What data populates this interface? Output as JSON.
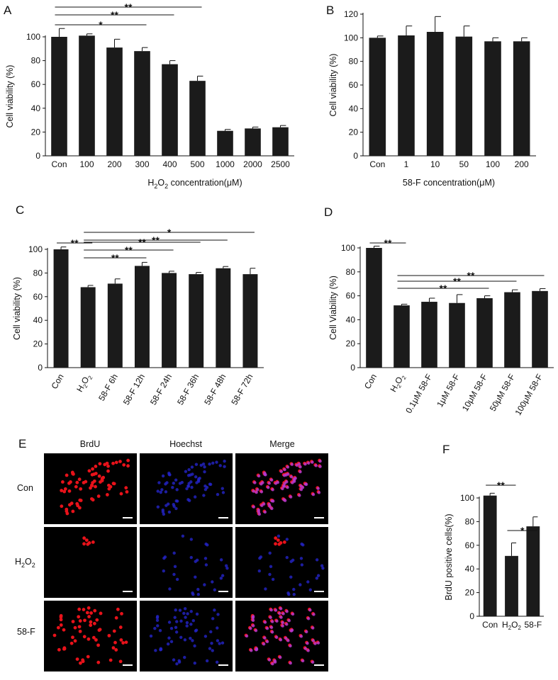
{
  "panels": {
    "A": {
      "letter": "A",
      "chart_data": {
        "type": "bar",
        "categories": [
          "Con",
          "100",
          "200",
          "300",
          "400",
          "500",
          "1000",
          "2000",
          "2500"
        ],
        "values": [
          100,
          101,
          91,
          88,
          77,
          63,
          21,
          23,
          24
        ],
        "errors": [
          7,
          1.5,
          7,
          3,
          3,
          4,
          1.2,
          1.2,
          1.5
        ],
        "xlabel_main": "H",
        "xlabel_sub": "2",
        "xlabel_middle": "O",
        "xlabel_sub2": "2",
        "xlabel_rest": " concentration(μM)",
        "ylabel": "Cell viability (%)",
        "ylim": [
          0,
          100
        ],
        "yticks": [
          "0",
          "20",
          "40",
          "60",
          "80",
          "100"
        ],
        "significance": [
          {
            "from": 0,
            "to": 3,
            "label": "*"
          },
          {
            "from": 0,
            "to": 4,
            "label": "**"
          },
          {
            "from": 0,
            "to": 5,
            "label": "**"
          }
        ]
      }
    },
    "B": {
      "letter": "B",
      "chart_data": {
        "type": "bar",
        "categories": [
          "Con",
          "1",
          "10",
          "50",
          "100",
          "200"
        ],
        "values": [
          100,
          102,
          105,
          101,
          97,
          97
        ],
        "errors": [
          1.5,
          8,
          13,
          9,
          3,
          3
        ],
        "xlabel": "58-F concentration(μM)",
        "ylabel": "Cell viability (%)",
        "ylim": [
          0,
          120
        ],
        "yticks": [
          "0",
          "20",
          "40",
          "60",
          "80",
          "100",
          "120"
        ]
      }
    },
    "C": {
      "letter": "C",
      "chart_data": {
        "type": "bar",
        "categories": [
          "Con",
          "H2O2",
          "58-F 6h",
          "58-F 12h",
          "58-F 24h",
          "58-F 36h",
          "58-F 48h",
          "58-F 72h"
        ],
        "values": [
          100,
          68,
          71,
          86,
          80,
          79,
          84,
          79
        ],
        "errors": [
          2,
          1.5,
          4,
          3,
          1.5,
          1.5,
          1.5,
          5
        ],
        "ylabel": "Cell viability (%)",
        "ylim": [
          0,
          100
        ],
        "yticks": [
          "0",
          "20",
          "40",
          "60",
          "80",
          "100"
        ],
        "significance": [
          {
            "from": 0,
            "to": 1,
            "label": "**"
          },
          {
            "from": 1,
            "to": 3,
            "label": "**"
          },
          {
            "from": 1,
            "to": 4,
            "label": "**"
          },
          {
            "from": 1,
            "to": 5,
            "label": "**"
          },
          {
            "from": 1,
            "to": 6,
            "label": "**"
          },
          {
            "from": 1,
            "to": 7,
            "label": "*"
          }
        ]
      }
    },
    "D": {
      "letter": "D",
      "chart_data": {
        "type": "bar",
        "categories": [
          "Con",
          "H2O2",
          "0.1μM 58-F",
          "1μM 58-F",
          "10μM 58-F",
          "50μM 58-F",
          "100μM 58-F"
        ],
        "values": [
          100,
          52,
          55,
          54,
          58,
          63,
          64
        ],
        "errors": [
          1.5,
          1,
          3,
          7,
          2,
          2,
          2
        ],
        "ylabel": "Cell Viability (%)",
        "ylim": [
          0,
          100
        ],
        "yticks": [
          "0",
          "20",
          "40",
          "60",
          "80",
          "100"
        ],
        "significance": [
          {
            "from": 0,
            "to": 1,
            "label": "**"
          },
          {
            "from": 1,
            "to": 4,
            "label": "**"
          },
          {
            "from": 1,
            "to": 5,
            "label": "**"
          },
          {
            "from": 1,
            "to": 6,
            "label": "**"
          }
        ]
      }
    },
    "E": {
      "letter": "E",
      "columns": [
        "BrdU",
        "Hoechst",
        "Merge"
      ],
      "rows": [
        "Con",
        "H2O2",
        "58-F"
      ]
    },
    "F": {
      "letter": "F",
      "chart_data": {
        "type": "bar",
        "categories": [
          "Con",
          "H2O2",
          "58-F"
        ],
        "values": [
          102,
          51,
          76
        ],
        "errors": [
          2,
          11,
          8
        ],
        "ylabel": "BrdU positive cells(%)",
        "ylim": [
          0,
          100
        ],
        "yticks": [
          "0",
          "20",
          "40",
          "60",
          "80",
          "100"
        ],
        "significance": [
          {
            "from": 0,
            "to": 1,
            "label": "**"
          },
          {
            "from": 1,
            "to": 2,
            "label": "*"
          }
        ]
      }
    }
  }
}
